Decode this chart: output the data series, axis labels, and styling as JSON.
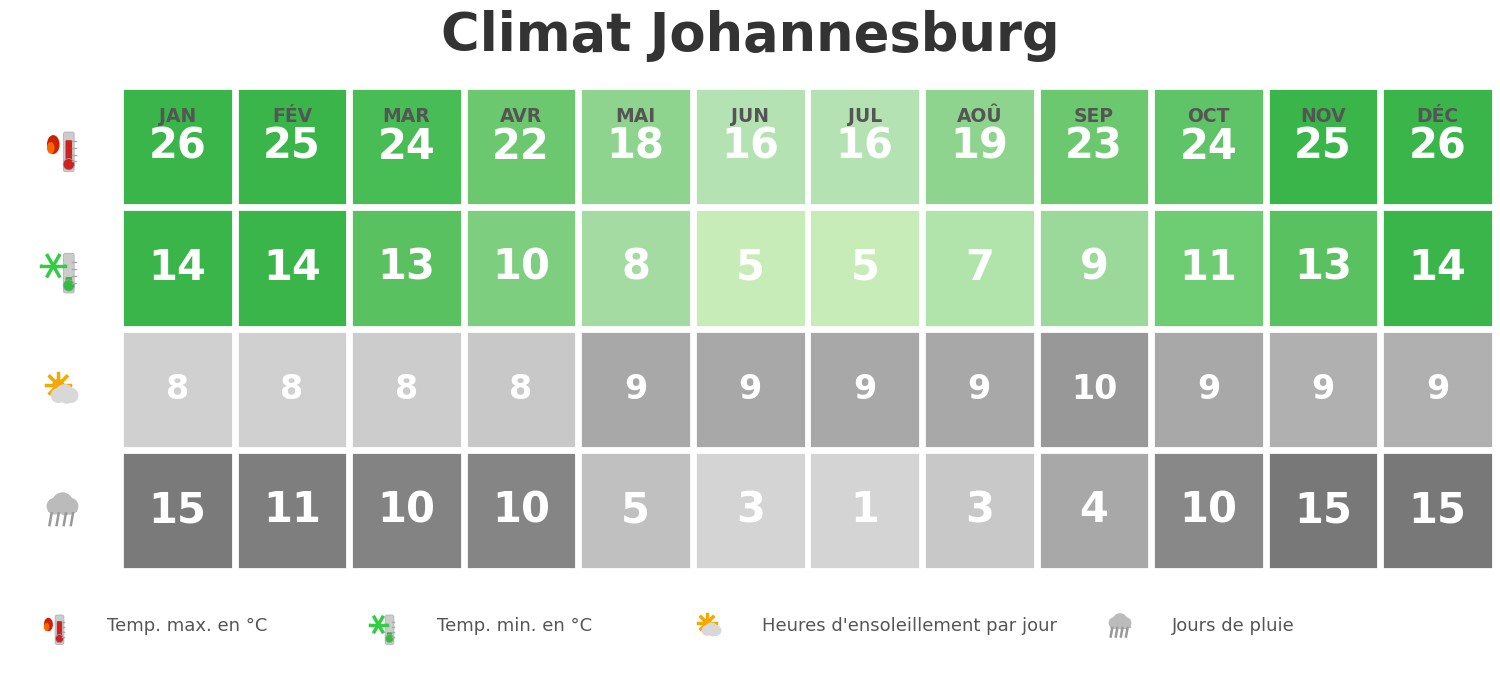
{
  "title": "Climat Johannesburg",
  "months": [
    "JAN",
    "FÉV",
    "MAR",
    "AVR",
    "MAI",
    "JUN",
    "JUL",
    "AOÛ",
    "SEP",
    "OCT",
    "NOV",
    "DÉC"
  ],
  "row0_values": [
    26,
    25,
    24,
    22,
    18,
    16,
    16,
    19,
    23,
    24,
    25,
    26
  ],
  "row1_values": [
    14,
    14,
    13,
    10,
    8,
    5,
    5,
    7,
    9,
    11,
    13,
    14
  ],
  "row2_values": [
    8,
    8,
    8,
    8,
    9,
    9,
    9,
    9,
    10,
    9,
    9,
    9
  ],
  "row3_values": [
    15,
    11,
    10,
    10,
    5,
    3,
    1,
    3,
    4,
    10,
    15,
    15
  ],
  "row0_colors": [
    "#3ab54a",
    "#3ab54a",
    "#48bc55",
    "#6cc86e",
    "#8fd48e",
    "#b5e2b3",
    "#b5e2b3",
    "#8fd48e",
    "#6cc86e",
    "#5fc368",
    "#3ab54a",
    "#3ab54a"
  ],
  "row1_colors": [
    "#3ab54a",
    "#3ab54a",
    "#5ac160",
    "#7dce7e",
    "#a3dba2",
    "#c8ecb8",
    "#c8ecb8",
    "#b0e4aa",
    "#9ad99a",
    "#6ecc72",
    "#5ac160",
    "#3ab54a"
  ],
  "row2_colors": [
    "#d0d0d0",
    "#d0d0d0",
    "#cccccc",
    "#c8c8c8",
    "#a8a8a8",
    "#a8a8a8",
    "#a8a8a8",
    "#a8a8a8",
    "#989898",
    "#a8a8a8",
    "#b0b0b0",
    "#b0b0b0"
  ],
  "row3_colors": [
    "#7a7a7a",
    "#7e7e7e",
    "#838383",
    "#858585",
    "#c0c0c0",
    "#d4d4d4",
    "#d4d4d4",
    "#c8c8c8",
    "#a8a8a8",
    "#888888",
    "#787878",
    "#787878"
  ],
  "row0_text_color": "#ffffff",
  "row1_text_color": "#ffffff",
  "row2_text_color": "#ffffff",
  "row3_text_color": "#ffffff",
  "header_color": "#555555",
  "title_color": "#333333",
  "bg_color": "#ffffff",
  "icon_bg_color": "#ffffff",
  "legend_texts": [
    "Temp. max. en °C",
    "Temp. min. en °C",
    "Heures d'ensoleillement par jour",
    "Jours de pluie"
  ],
  "legend_text_color": "#555555"
}
